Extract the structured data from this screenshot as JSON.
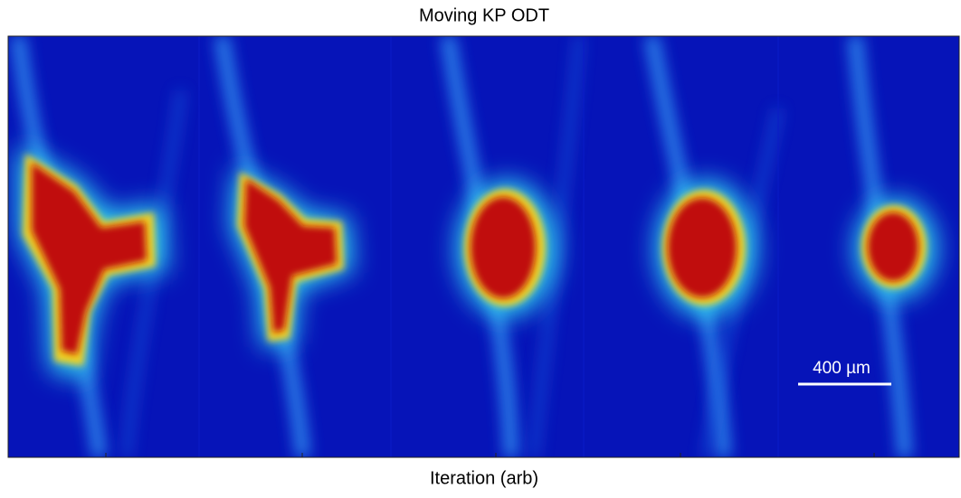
{
  "title": "Moving KP ODT",
  "x_label": "Iteration (arb)",
  "scale_bar": {
    "label": "400 µm"
  }
}
